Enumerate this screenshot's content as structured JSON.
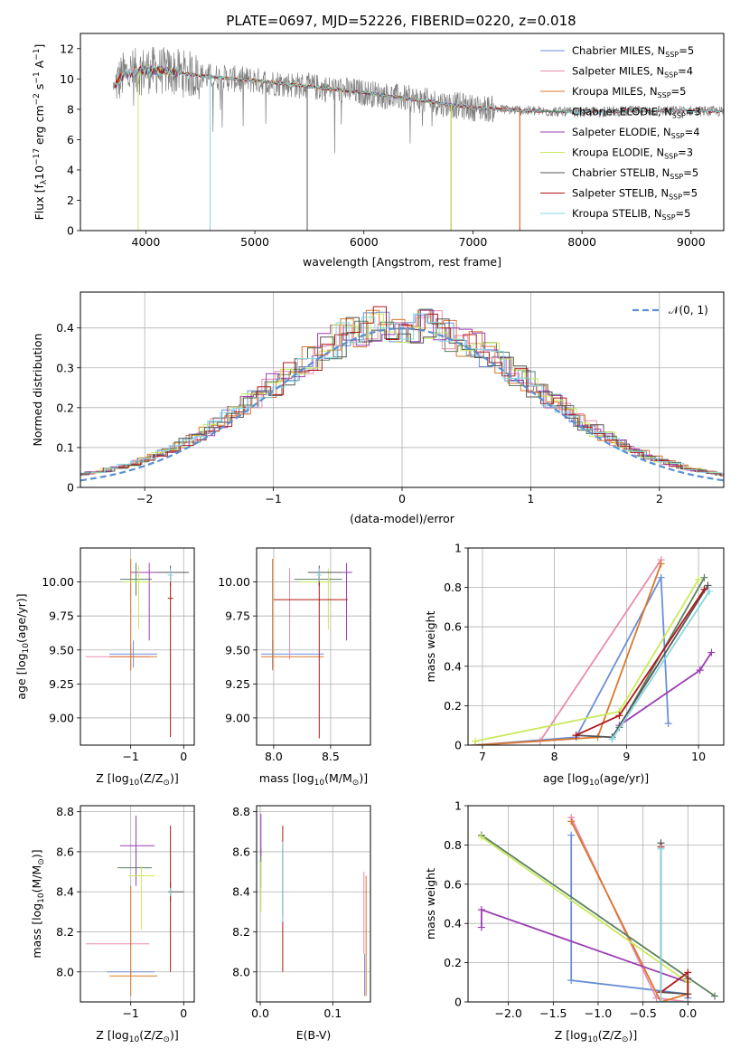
{
  "figure_title": "PLATE=0697, MJD=52226, FIBERID=0220, z=0.018",
  "colors": {
    "chabrier_miles": "#6a8fd8",
    "salpeter_miles": "#e98ab0",
    "kroupa_miles": "#d9782d",
    "chabrier_elodie": "#5d8060",
    "salpeter_elodie": "#9b3db3",
    "kroupa_elodie": "#c9ea5a",
    "chabrier_stelib": "#555555",
    "salpeter_stelib": "#b01818",
    "kroupa_stelib": "#86d8e0",
    "normal": "#5b8fd0"
  },
  "chart_data": [
    {
      "id": "spectrum",
      "type": "line",
      "title": "PLATE=0697, MJD=52226, FIBERID=0220, z=0.018",
      "xlabel": "wavelength [Angstrom, rest frame]",
      "ylabel_parts": [
        "Flux [f",
        "λ",
        "10",
        "−17",
        " erg cm",
        "−2",
        " s",
        "−1",
        " A",
        "−1",
        "]"
      ],
      "xlim": [
        3400,
        9300
      ],
      "ylim": [
        0,
        13
      ],
      "xticks": [
        4000,
        5000,
        6000,
        7000,
        8000,
        9000
      ],
      "yticks": [
        0,
        2,
        4,
        6,
        8,
        10,
        12
      ],
      "legend_position": "upper-right",
      "legend": [
        {
          "name": "Chabrier MILES",
          "n": "5",
          "color_key": "chabrier_miles"
        },
        {
          "name": "Salpeter MILES",
          "n": "4",
          "color_key": "salpeter_miles"
        },
        {
          "name": "Kroupa MILES",
          "n": "5",
          "color_key": "kroupa_miles"
        },
        {
          "name": "Chabrier ELODIE",
          "n": "3",
          "color_key": "chabrier_elodie"
        },
        {
          "name": "Salpeter ELODIE",
          "n": "4",
          "color_key": "salpeter_elodie"
        },
        {
          "name": "Kroupa ELODIE",
          "n": "3",
          "color_key": "kroupa_elodie"
        },
        {
          "name": "Chabrier STELIB",
          "n": "5",
          "color_key": "chabrier_stelib"
        },
        {
          "name": "Salpeter STELIB",
          "n": "5",
          "color_key": "salpeter_stelib"
        },
        {
          "name": "Kroupa STELIB",
          "n": "5",
          "color_key": "kroupa_stelib"
        }
      ],
      "data_envelope": {
        "x": [
          3700,
          3800,
          4000,
          4200,
          4500,
          5000,
          5500,
          6000,
          6500,
          7000,
          7500,
          8000,
          8500,
          9000,
          9300
        ],
        "y": [
          9.5,
          10.3,
          10.6,
          10.5,
          10.2,
          9.9,
          9.5,
          9.1,
          8.6,
          8.1,
          7.9,
          7.8,
          7.9,
          7.9,
          7.85
        ]
      },
      "model_coverage": {
        "miles": [
          3700,
          7430
        ],
        "elodie": [
          3900,
          6800
        ],
        "stelib": [
          3700,
          9300
        ]
      }
    },
    {
      "id": "residuals",
      "type": "line",
      "xlabel": "(data-model)/error",
      "ylabel": "Normed distribution",
      "xlim": [
        -2.5,
        2.5
      ],
      "ylim": [
        0,
        0.49
      ],
      "xticks": [
        -2,
        -1,
        0,
        1,
        2
      ],
      "yticks": [
        0.0,
        0.1,
        0.2,
        0.3,
        0.4
      ],
      "legend_label": "𝒩(0, 1)",
      "legend_position": "upper-right",
      "normal_curve": {
        "mean": 0,
        "sigma": 1
      }
    },
    {
      "id": "age-vs-Z",
      "type": "scatter",
      "xlabel_parts": [
        "Z [log",
        "10",
        "(Z/Z",
        "⊙",
        ")]"
      ],
      "ylabel_parts": [
        "age  [log",
        "10",
        "(age/yr)]"
      ],
      "xlim": [
        -1.95,
        0.2
      ],
      "ylim": [
        8.8,
        10.25
      ],
      "xticks": [
        -1,
        0
      ],
      "yticks": [
        9.0,
        9.25,
        9.5,
        9.75,
        10.0
      ],
      "ytick_labels": [
        "9.00",
        "9.25",
        "9.50",
        "9.75",
        "10.00"
      ],
      "errorbars": [
        {
          "x": -0.95,
          "xerr": [
            0.45,
            0.45
          ],
          "y": 9.47,
          "yerr": [
            0.1,
            0.1
          ],
          "color_key": "chabrier_miles"
        },
        {
          "x": -1.0,
          "xerr": [
            0.85,
            0.35
          ],
          "y": 9.45,
          "yerr": [
            0.1,
            0.1
          ],
          "color_key": "salpeter_miles"
        },
        {
          "x": -1.0,
          "xerr": [
            0.4,
            0.5
          ],
          "y": 9.45,
          "yerr": [
            0.1,
            0.72
          ],
          "color_key": "kroupa_miles"
        },
        {
          "x": -0.9,
          "xerr": [
            0.3,
            0.3
          ],
          "y": 10.02,
          "yerr": [
            0.12,
            0.12
          ],
          "color_key": "chabrier_elodie"
        },
        {
          "x": -0.65,
          "xerr": [
            0.35,
            0.35
          ],
          "y": 10.07,
          "yerr": [
            0.5,
            0.07
          ],
          "color_key": "salpeter_elodie"
        },
        {
          "x": -0.85,
          "xerr": [
            0.3,
            0.25
          ],
          "y": 10.0,
          "yerr": [
            0.35,
            0.12
          ],
          "color_key": "kroupa_elodie"
        },
        {
          "x": -0.25,
          "xerr": [
            0.25,
            0.35
          ],
          "y": 10.07,
          "yerr": [
            0.1,
            0.05
          ],
          "color_key": "chabrier_stelib"
        },
        {
          "x": -0.25,
          "xerr": [
            0.05,
            0.05
          ],
          "y": 9.88,
          "yerr": [
            1.02,
            0.17
          ],
          "color_key": "salpeter_stelib"
        },
        {
          "x": -0.25,
          "xerr": [
            0.05,
            0.05
          ],
          "y": 10.05,
          "yerr": [
            0.05,
            0.05
          ],
          "color_key": "kroupa_stelib"
        }
      ]
    },
    {
      "id": "age-vs-mass",
      "type": "scatter",
      "xlabel_parts": [
        "mass [log",
        "10",
        "(M/M",
        "⊙",
        ")]"
      ],
      "xlim": [
        7.85,
        8.85
      ],
      "ylim": [
        8.8,
        10.25
      ],
      "xticks": [
        8.0,
        8.5
      ],
      "xtick_labels": [
        "8.0",
        "8.5"
      ],
      "yticks": [
        9.0,
        9.25,
        9.5,
        9.75,
        10.0
      ],
      "ytick_labels": [
        "9.00",
        "9.25",
        "9.50",
        "9.75",
        "10.00"
      ],
      "errorbars": [
        {
          "x": 7.99,
          "xerr": [
            0.1,
            0.45
          ],
          "y": 9.47,
          "yerr": [
            0.1,
            0.1
          ],
          "color_key": "chabrier_miles"
        },
        {
          "x": 8.14,
          "xerr": [
            0.01,
            0.01
          ],
          "y": 9.75,
          "yerr": [
            0.32,
            0.35
          ],
          "color_key": "salpeter_miles"
        },
        {
          "x": 7.99,
          "xerr": [
            0.1,
            0.45
          ],
          "y": 9.45,
          "yerr": [
            0.1,
            0.72
          ],
          "color_key": "kroupa_miles"
        },
        {
          "x": 8.4,
          "xerr": [
            0.22,
            0.2
          ],
          "y": 10.02,
          "yerr": [
            0.05,
            0.05
          ],
          "color_key": "chabrier_elodie"
        },
        {
          "x": 8.64,
          "xerr": [
            0.3,
            0.05
          ],
          "y": 10.07,
          "yerr": [
            0.5,
            0.07
          ],
          "color_key": "salpeter_elodie"
        },
        {
          "x": 8.48,
          "xerr": [
            0.25,
            0.02
          ],
          "y": 10.0,
          "yerr": [
            0.35,
            0.1
          ],
          "color_key": "kroupa_elodie"
        },
        {
          "x": 8.4,
          "xerr": [
            0.1,
            0.2
          ],
          "y": 10.07,
          "yerr": [
            0.1,
            0.05
          ],
          "color_key": "chabrier_stelib"
        },
        {
          "x": 8.4,
          "xerr": [
            0.4,
            0.25
          ],
          "y": 9.87,
          "yerr": [
            1.02,
            0.17
          ],
          "color_key": "salpeter_stelib"
        },
        {
          "x": 8.4,
          "xerr": [
            0.02,
            0.02
          ],
          "y": 10.05,
          "yerr": [
            0.05,
            0.05
          ],
          "color_key": "kroupa_stelib"
        }
      ]
    },
    {
      "id": "massweight-vs-age",
      "type": "line",
      "xlabel_parts": [
        "age  [log",
        "10",
        "(age/yr)]"
      ],
      "ylabel": "mass weight",
      "xlim": [
        6.8,
        10.35
      ],
      "ylim": [
        0,
        1
      ],
      "xticks": [
        7,
        8,
        9,
        10
      ],
      "yticks": [
        0.0,
        0.2,
        0.4,
        0.6,
        0.8,
        1.0
      ],
      "series": [
        {
          "color_key": "chabrier_miles",
          "x": [
            6.9,
            8.3,
            9.48,
            9.58
          ],
          "y": [
            0.0,
            0.04,
            0.85,
            0.11
          ]
        },
        {
          "color_key": "salpeter_miles",
          "x": [
            6.9,
            7.8,
            9.48
          ],
          "y": [
            0.0,
            0.02,
            0.94
          ]
        },
        {
          "color_key": "kroupa_miles",
          "x": [
            6.9,
            8.6,
            9.48
          ],
          "y": [
            0.0,
            0.04,
            0.92
          ]
        },
        {
          "color_key": "chabrier_elodie",
          "x": [
            8.9,
            10.08
          ],
          "y": [
            0.09,
            0.85
          ]
        },
        {
          "color_key": "salpeter_elodie",
          "x": [
            8.9,
            10.02,
            10.18
          ],
          "y": [
            0.1,
            0.38,
            0.47
          ]
        },
        {
          "color_key": "kroupa_elodie",
          "x": [
            6.9,
            8.9,
            10.0
          ],
          "y": [
            0.02,
            0.17,
            0.84
          ]
        },
        {
          "color_key": "chabrier_stelib",
          "x": [
            8.3,
            8.8,
            10.13
          ],
          "y": [
            0.05,
            0.04,
            0.81
          ]
        },
        {
          "color_key": "salpeter_stelib",
          "x": [
            8.3,
            8.9,
            10.08
          ],
          "y": [
            0.05,
            0.15,
            0.79
          ]
        },
        {
          "color_key": "kroupa_stelib",
          "x": [
            8.8,
            10.15
          ],
          "y": [
            0.03,
            0.78
          ]
        }
      ]
    },
    {
      "id": "mass-vs-Z",
      "type": "scatter",
      "xlabel_parts": [
        "Z [log",
        "10",
        "(Z/Z",
        "⊙",
        ")]"
      ],
      "ylabel_parts": [
        "mass [log",
        "10",
        "(M/M",
        "⊙",
        ")]"
      ],
      "xlim": [
        -1.95,
        0.2
      ],
      "ylim": [
        7.85,
        8.83
      ],
      "xticks": [
        -1,
        0
      ],
      "yticks": [
        8.0,
        8.2,
        8.4,
        8.6,
        8.8
      ],
      "ytick_labels": [
        "8.0",
        "8.2",
        "8.4",
        "8.6",
        "8.8"
      ],
      "errorbars": [
        {
          "x": -1.0,
          "xerr": [
            0.45,
            0.45
          ],
          "y": 8.0,
          "yerr": [
            0.01,
            0.01
          ],
          "color_key": "chabrier_miles"
        },
        {
          "x": -1.0,
          "xerr": [
            0.85,
            0.35
          ],
          "y": 8.14,
          "yerr": [
            0.01,
            0.01
          ],
          "color_key": "salpeter_miles"
        },
        {
          "x": -1.0,
          "xerr": [
            0.4,
            0.5
          ],
          "y": 7.98,
          "yerr": [
            0.1,
            0.45
          ],
          "color_key": "kroupa_miles"
        },
        {
          "x": -0.9,
          "xerr": [
            0.35,
            0.3
          ],
          "y": 8.52,
          "yerr": [
            0.05,
            0.1
          ],
          "color_key": "chabrier_elodie"
        },
        {
          "x": -0.9,
          "xerr": [
            0.3,
            0.35
          ],
          "y": 8.63,
          "yerr": [
            0.2,
            0.15
          ],
          "color_key": "salpeter_elodie"
        },
        {
          "x": -0.8,
          "xerr": [
            0.25,
            0.25
          ],
          "y": 8.48,
          "yerr": [
            0.27,
            0.05
          ],
          "color_key": "kroupa_elodie"
        },
        {
          "x": -0.25,
          "xerr": [
            0.04,
            0.25
          ],
          "y": 8.4,
          "yerr": [
            0.05,
            0.05
          ],
          "color_key": "chabrier_stelib"
        },
        {
          "x": -0.25,
          "xerr": [
            0.01,
            0.01
          ],
          "y": 8.4,
          "yerr": [
            0.4,
            0.33
          ],
          "color_key": "salpeter_stelib"
        },
        {
          "x": -0.25,
          "xerr": [
            0.01,
            0.01
          ],
          "y": 8.4,
          "yerr": [
            0.02,
            0.02
          ],
          "color_key": "kroupa_stelib"
        }
      ]
    },
    {
      "id": "mass-vs-ebv",
      "type": "scatter",
      "xlabel": "E(B-V)",
      "xlim": [
        -0.005,
        0.152
      ],
      "ylim": [
        7.85,
        8.83
      ],
      "xticks": [
        0.0,
        0.1
      ],
      "xtick_labels": [
        "0.0",
        "0.1"
      ],
      "yticks": [
        8.0,
        8.2,
        8.4,
        8.6,
        8.8
      ],
      "ytick_labels": [
        "8.0",
        "8.2",
        "8.4",
        "8.6",
        "8.8"
      ],
      "errorbars": [
        {
          "x": 0.144,
          "xerr": [
            0.0,
            0.0
          ],
          "y": 8.0,
          "yerr": [
            0.12,
            0.09
          ],
          "color_key": "chabrier_miles"
        },
        {
          "x": 0.143,
          "xerr": [
            0.0,
            0.0
          ],
          "y": 8.3,
          "yerr": [
            0.21,
            0.2
          ],
          "color_key": "salpeter_miles"
        },
        {
          "x": 0.146,
          "xerr": [
            0.0,
            0.0
          ],
          "y": 8.2,
          "yerr": [
            0.32,
            0.28
          ],
          "color_key": "kroupa_miles"
        },
        {
          "x": 0.001,
          "xerr": [
            0.0,
            0.0
          ],
          "y": 8.52,
          "yerr": [
            0.1,
            0.1
          ],
          "color_key": "chabrier_elodie"
        },
        {
          "x": 0.001,
          "xerr": [
            0.0,
            0.0
          ],
          "y": 8.63,
          "yerr": [
            0.05,
            0.16
          ],
          "color_key": "salpeter_elodie"
        },
        {
          "x": 0.001,
          "xerr": [
            0.0,
            0.0
          ],
          "y": 8.5,
          "yerr": [
            0.2,
            0.05
          ],
          "color_key": "kroupa_elodie"
        },
        {
          "x": 0.031,
          "xerr": [
            0.0,
            0.0
          ],
          "y": 8.43,
          "yerr": [
            0.15,
            0.2
          ],
          "color_key": "chabrier_stelib"
        },
        {
          "x": 0.031,
          "xerr": [
            0.0,
            0.0
          ],
          "y": 8.4,
          "yerr": [
            0.4,
            0.33
          ],
          "color_key": "salpeter_stelib"
        },
        {
          "x": 0.031,
          "xerr": [
            0.0,
            0.0
          ],
          "y": 8.45,
          "yerr": [
            0.2,
            0.2
          ],
          "color_key": "kroupa_stelib"
        }
      ]
    },
    {
      "id": "massweight-vs-Z",
      "type": "line",
      "xlabel_parts": [
        "Z [log",
        "10",
        "(Z/Z",
        "⊙",
        ")]"
      ],
      "ylabel": "mass weight",
      "xlim": [
        -2.45,
        0.4
      ],
      "ylim": [
        0,
        1
      ],
      "xticks": [
        -2.0,
        -1.5,
        -1.0,
        -0.5,
        0.0
      ],
      "xtick_labels": [
        "−2.0",
        "−1.5",
        "−1.0",
        "−0.5",
        "0.0"
      ],
      "yticks": [
        0.0,
        0.2,
        0.4,
        0.6,
        0.8,
        1.0
      ],
      "series": [
        {
          "color_key": "chabrier_miles",
          "x": [
            -1.3,
            -1.3,
            0.0,
            0.0
          ],
          "y": [
            0.85,
            0.11,
            0.04,
            0.02
          ]
        },
        {
          "color_key": "salpeter_miles",
          "x": [
            -1.3,
            -0.35,
            0.0
          ],
          "y": [
            0.94,
            0.02,
            0.0
          ]
        },
        {
          "color_key": "kroupa_miles",
          "x": [
            -1.3,
            -0.3,
            0.0
          ],
          "y": [
            0.92,
            0.0,
            0.04
          ]
        },
        {
          "color_key": "chabrier_elodie",
          "x": [
            -2.3,
            0.3
          ],
          "y": [
            0.85,
            0.03
          ]
        },
        {
          "color_key": "salpeter_elodie",
          "x": [
            -2.3,
            -2.3,
            0.0
          ],
          "y": [
            0.38,
            0.47,
            0.1
          ]
        },
        {
          "color_key": "kroupa_elodie",
          "x": [
            -2.3,
            0.0
          ],
          "y": [
            0.84,
            0.1
          ]
        },
        {
          "color_key": "chabrier_stelib",
          "x": [
            -0.3,
            -0.3,
            0.0,
            0.0
          ],
          "y": [
            0.81,
            0.05,
            0.04,
            0.12
          ]
        },
        {
          "color_key": "salpeter_stelib",
          "x": [
            -0.3,
            -0.3,
            0.0,
            0.0
          ],
          "y": [
            0.79,
            0.05,
            0.15,
            0.0
          ]
        },
        {
          "color_key": "kroupa_stelib",
          "x": [
            -0.3,
            -0.3,
            0.0
          ],
          "y": [
            0.78,
            0.0,
            0.0
          ]
        }
      ]
    }
  ]
}
